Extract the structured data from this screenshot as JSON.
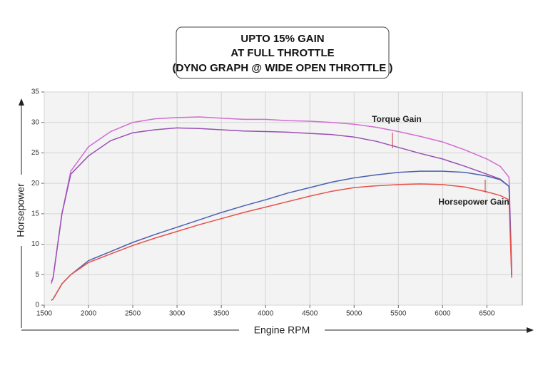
{
  "chart_data": {
    "type": "line",
    "title": [
      "UPTO 15% GAIN",
      "AT FULL THROTTLE",
      "(DYNO GRAPH @ WIDE OPEN THROTTLE )"
    ],
    "x_label": "Engine RPM",
    "y_label": "Horsepower",
    "annotations": [
      "Torque Gain",
      "Horsepower Gain"
    ],
    "x": [
      1580,
      1600,
      1700,
      1800,
      2000,
      2250,
      2500,
      2750,
      3000,
      3250,
      3500,
      3750,
      4000,
      4250,
      4500,
      4750,
      5000,
      5250,
      5500,
      5750,
      6000,
      6250,
      6500,
      6650,
      6750,
      6780
    ],
    "series": [
      {
        "color": "#d36bd3",
        "values": [
          3.5,
          4.5,
          15,
          22,
          26,
          28.5,
          30,
          30.6,
          30.8,
          30.9,
          30.7,
          30.5,
          30.5,
          30.3,
          30.2,
          30,
          29.7,
          29.2,
          28.5,
          27.7,
          26.8,
          25.5,
          24,
          22.8,
          21,
          6
        ]
      },
      {
        "color": "#9a4fb3",
        "values": [
          3.8,
          4.5,
          15,
          21.5,
          24.5,
          27,
          28.3,
          28.8,
          29.1,
          29,
          28.8,
          28.6,
          28.5,
          28.4,
          28.2,
          28,
          27.6,
          26.9,
          25.9,
          24.9,
          24,
          22.8,
          21.5,
          20.7,
          19.5,
          5
        ]
      },
      {
        "color": "#4a5fb0",
        "values": [
          0.8,
          1,
          3.5,
          5,
          7.3,
          8.8,
          10.3,
          11.6,
          12.8,
          14,
          15.2,
          16.3,
          17.3,
          18.4,
          19.3,
          20.2,
          20.9,
          21.4,
          21.8,
          22,
          22,
          21.8,
          21.2,
          20.6,
          19.5,
          5
        ]
      },
      {
        "color": "#e8504a",
        "values": [
          0.8,
          1,
          3.5,
          5,
          7,
          8.4,
          9.8,
          11,
          12.1,
          13.2,
          14.2,
          15.2,
          16.1,
          17,
          17.9,
          18.7,
          19.3,
          19.6,
          19.8,
          19.9,
          19.8,
          19.4,
          18.6,
          18,
          17.3,
          4.5
        ]
      }
    ],
    "xlim": [
      1500,
      6900
    ],
    "ylim": [
      0,
      35
    ],
    "xticks": [
      1500,
      2000,
      2500,
      3000,
      3500,
      4000,
      4500,
      5000,
      5500,
      6000,
      6500
    ],
    "yticks": [
      0,
      5,
      10,
      15,
      20,
      25,
      30,
      35
    ],
    "grid": true
  }
}
